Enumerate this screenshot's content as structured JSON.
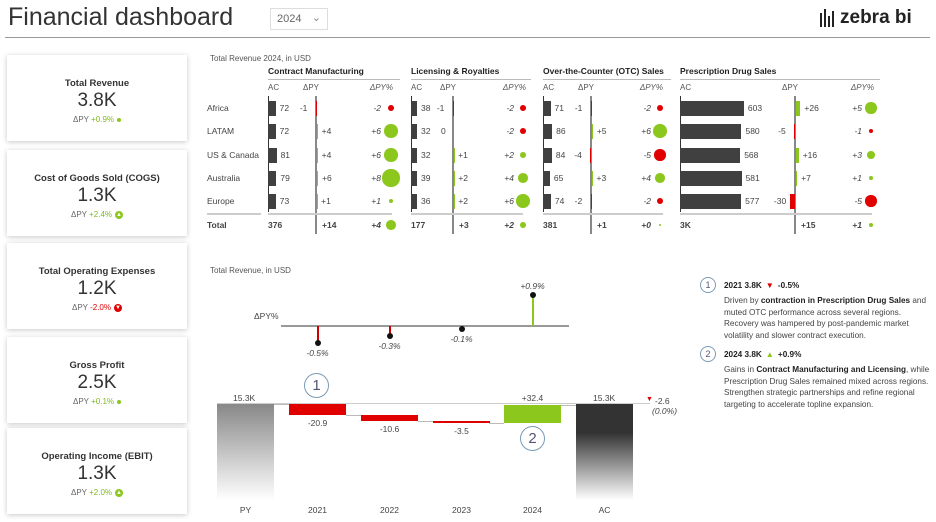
{
  "header": {
    "title": "Financial dashboard",
    "year": "2024",
    "brand": "zebra bi"
  },
  "colors": {
    "positive": "#8cc71d",
    "negative": "#e00000",
    "bar": "#404040"
  },
  "kpis": [
    {
      "title": "Total Revenue",
      "value": "3.8K",
      "dpy_label": "ΔPY",
      "delta": "+0.9%",
      "status": "positive"
    },
    {
      "title": "Cost of Goods Sold (COGS)",
      "value": "1.3K",
      "dpy_label": "ΔPY",
      "delta": "+2.4%",
      "status": "positive"
    },
    {
      "title": "Total Operating Expenses",
      "value": "1.2K",
      "dpy_label": "ΔPY",
      "delta": "-2.0%",
      "status": "negative"
    },
    {
      "title": "Gross Profit",
      "value": "2.5K",
      "dpy_label": "ΔPY",
      "delta": "+0.1%",
      "status": "positive"
    },
    {
      "title": "Operating Income (EBIT)",
      "value": "1.3K",
      "dpy_label": "ΔPY",
      "delta": "+2.0%",
      "status": "positive"
    }
  ],
  "table": {
    "title": "Total Revenue 2024, in USD",
    "col_ac": "AC",
    "col_dpy": "ΔPY",
    "col_pct": "ΔPY%",
    "rows": [
      "Africa",
      "LATAM",
      "US & Canada",
      "Australia",
      "Europe"
    ],
    "total_label": "Total",
    "groups": [
      {
        "name": "Contract Manufacturing",
        "ac": [
          "72",
          "72",
          "81",
          "79",
          "73"
        ],
        "dpy": [
          "-1",
          "+4",
          "+4",
          "+6",
          "+1"
        ],
        "pct": [
          "-2",
          "+6",
          "+6",
          "+8",
          "+1"
        ],
        "total": {
          "ac": "376",
          "dpy": "+14",
          "pct": "+4"
        }
      },
      {
        "name": "Licensing & Royalties",
        "ac": [
          "38",
          "32",
          "32",
          "39",
          "36"
        ],
        "dpy": [
          "-1",
          "0",
          "+1",
          "+2",
          "+2"
        ],
        "pct": [
          "-2",
          "-2",
          "+2",
          "+4",
          "+6"
        ],
        "total": {
          "ac": "177",
          "dpy": "+3",
          "pct": "+2"
        }
      },
      {
        "name": "Over-the-Counter (OTC) Sales",
        "ac": [
          "71",
          "86",
          "84",
          "65",
          "74"
        ],
        "dpy": [
          "-1",
          "+5",
          "-4",
          "+3",
          "-2"
        ],
        "pct": [
          "-2",
          "+6",
          "-5",
          "+4",
          "-2"
        ],
        "total": {
          "ac": "381",
          "dpy": "+1",
          "pct": "+0"
        }
      },
      {
        "name": "Prescription Drug Sales",
        "ac": [
          "603",
          "580",
          "568",
          "581",
          "577"
        ],
        "dpy": [
          "+26",
          "-5",
          "+16",
          "+7",
          "-30"
        ],
        "pct": [
          "+5",
          "-1",
          "+3",
          "+1",
          "-5"
        ],
        "total": {
          "ac": "3K",
          "dpy": "+15",
          "pct": "+1"
        }
      }
    ]
  },
  "chart_data": {
    "type": "waterfall",
    "title": "Total Revenue, in USD",
    "categories": [
      "PY",
      "2021",
      "2022",
      "2023",
      "2024",
      "AC"
    ],
    "start": {
      "label": "PY",
      "value": 15.3,
      "display": "15.3K"
    },
    "deltas": [
      {
        "label": "2021",
        "value": -20.9,
        "display": "-20.9"
      },
      {
        "label": "2022",
        "value": -10.6,
        "display": "-10.6"
      },
      {
        "label": "2023",
        "value": -3.5,
        "display": "-3.5"
      },
      {
        "label": "2024",
        "value": 32.4,
        "display": "+32.4"
      }
    ],
    "end": {
      "label": "AC",
      "value": 15.3,
      "display": "15.3K"
    },
    "net_change": {
      "display": "-2.6",
      "pct": "(0.0%)"
    },
    "dpy_pct": {
      "label": "ΔPY%",
      "values": [
        -0.5,
        -0.3,
        -0.1,
        0.9
      ],
      "display": [
        "-0.5%",
        "-0.3%",
        "-0.1%",
        "+0.9%"
      ]
    },
    "markers": [
      "1",
      "2"
    ]
  },
  "notes": [
    {
      "num": "1",
      "heading": "2021 3.8K",
      "delta": "-0.5%",
      "dir": "down",
      "pre": "Driven by ",
      "bold": "contraction in Prescription Drug Sales",
      "post": " and muted OTC performance across several regions. Recovery was hampered by post-pandemic market volatility and slower contract execution."
    },
    {
      "num": "2",
      "heading": "2024 3.8K",
      "delta": "+0.9%",
      "dir": "up",
      "pre": "Gains in ",
      "bold": "Contract Manufacturing and Licensing",
      "post": ", while Prescription Drug Sales remained mixed across regions. Strengthen strategic partnerships and refine regional targeting to accelerate topline expansion."
    }
  ]
}
